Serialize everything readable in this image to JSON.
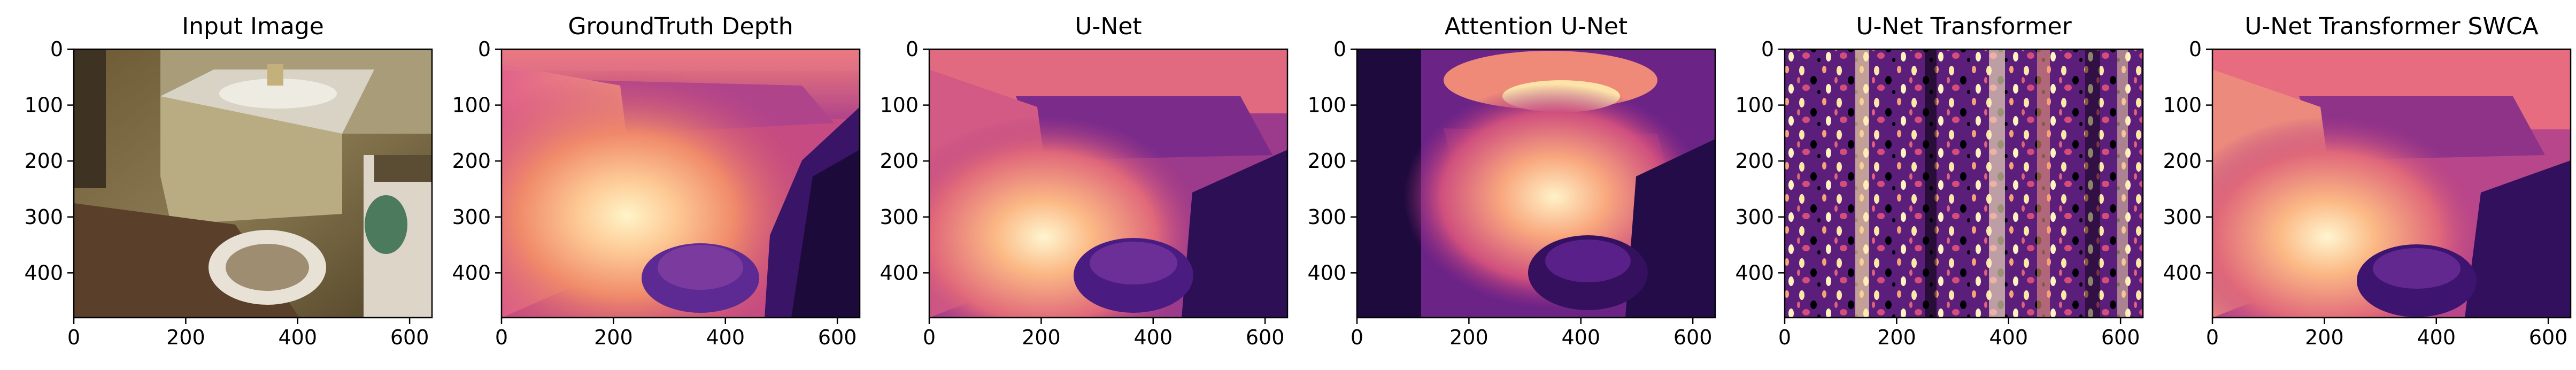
{
  "figure": {
    "panels": [
      {
        "title": "Input Image",
        "image": "bathroom-rgb-photo",
        "x_ticks": [
          "0",
          "200",
          "400",
          "600"
        ],
        "y_ticks": [
          "0",
          "100",
          "200",
          "300",
          "400"
        ]
      },
      {
        "title": "GroundTruth Depth",
        "image": "ground-truth-depth-map",
        "x_ticks": [
          "0",
          "200",
          "400",
          "600"
        ],
        "y_ticks": [
          "0",
          "100",
          "200",
          "300",
          "400"
        ]
      },
      {
        "title": "U-Net",
        "image": "unet-predicted-depth-map",
        "x_ticks": [
          "0",
          "200",
          "400",
          "600"
        ],
        "y_ticks": [
          "0",
          "100",
          "200",
          "300",
          "400"
        ]
      },
      {
        "title": "Attention U-Net",
        "image": "attention-unet-predicted-depth-map",
        "x_ticks": [
          "0",
          "200",
          "400",
          "600"
        ],
        "y_ticks": [
          "0",
          "100",
          "200",
          "300",
          "400"
        ]
      },
      {
        "title": "U-Net Transformer",
        "image": "unet-transformer-predicted-depth-map",
        "x_ticks": [
          "0",
          "200",
          "400",
          "600"
        ],
        "y_ticks": [
          "0",
          "100",
          "200",
          "300",
          "400"
        ]
      },
      {
        "title": "U-Net Transformer SWCA",
        "image": "unet-transformer-swca-predicted-depth-map",
        "x_ticks": [
          "0",
          "200",
          "400",
          "600"
        ],
        "y_ticks": [
          "0",
          "100",
          "200",
          "300",
          "400"
        ]
      }
    ],
    "colors": {
      "depth_near": "#fcfdbf",
      "depth_mid_light": "#fe9f6d",
      "depth_mid": "#de4968",
      "depth_mid_dark": "#8c2981",
      "depth_far": "#3b0f70",
      "depth_farthest": "#000004"
    }
  }
}
